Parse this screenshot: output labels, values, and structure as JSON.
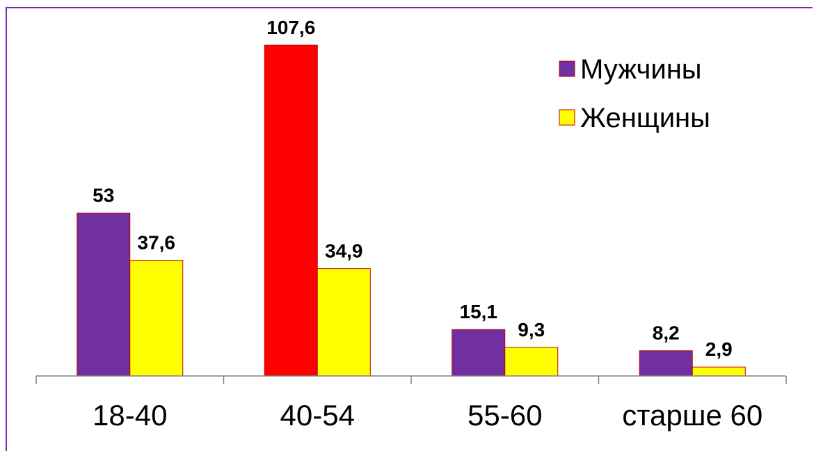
{
  "chart_data": {
    "type": "bar",
    "categories": [
      "18-40",
      "40-54",
      "55-60",
      "старше 60"
    ],
    "series": [
      {
        "name": "Мужчины",
        "values": [
          53,
          107.6,
          15.1,
          8.2
        ],
        "value_labels": [
          "53",
          "107,6",
          "15,1",
          "8,2"
        ],
        "color": "#7030a0",
        "highlight": {
          "index": 1,
          "color": "#ff0000"
        }
      },
      {
        "name": "Женщины",
        "values": [
          37.6,
          34.9,
          9.3,
          2.9
        ],
        "value_labels": [
          "37,6",
          "34,9",
          "9,3",
          "2,9"
        ],
        "color": "#ffff00"
      }
    ],
    "ylim": [
      0,
      107.6
    ],
    "grid": false,
    "legend_position": "top-right",
    "bar_border_color": "#c00000"
  }
}
